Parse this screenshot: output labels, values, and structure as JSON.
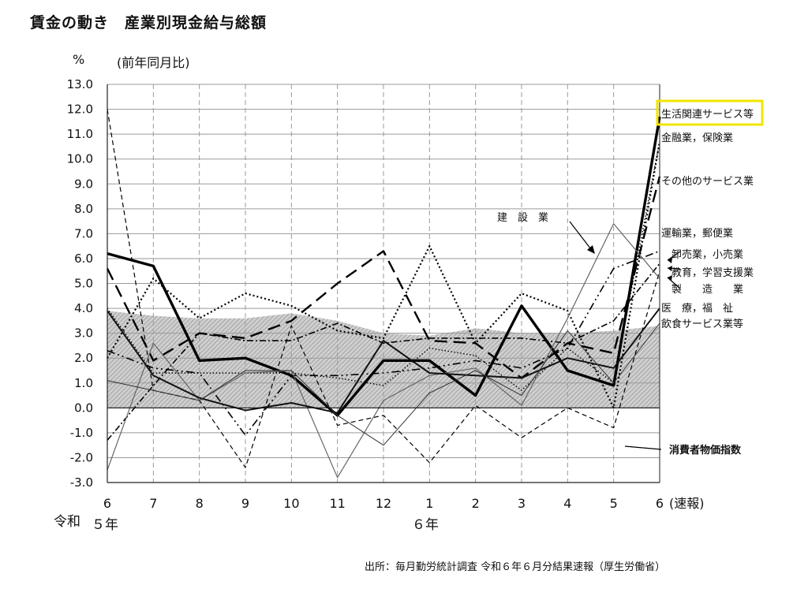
{
  "page": {
    "title": "賃金の動き　産業別現金給与総額",
    "unit": "%",
    "unit_note": "(前年同月比)",
    "source": "出所：毎月勤労統計調査 令和６年６月分結果速報（厚生労働省）"
  },
  "chart_data": {
    "type": "line",
    "title": "賃金の動き　産業別現金給与総額",
    "ylabel": "%",
    "ylim": [
      -3.0,
      13.0
    ],
    "y_ticks": [
      "13.0",
      "12.0",
      "11.0",
      "10.0",
      "9.0",
      "8.0",
      "7.0",
      "6.0",
      "5.0",
      "4.0",
      "3.0",
      "2.0",
      "1.0",
      "0.0",
      "-1.0",
      "-2.0",
      "-3.0"
    ],
    "grid": true,
    "categories": [
      "6",
      "7",
      "8",
      "9",
      "10",
      "11",
      "12",
      "1",
      "2",
      "3",
      "4",
      "5",
      "6"
    ],
    "x_suffix_last": "(速報)",
    "era_labels": [
      "令和",
      "５年",
      "６年"
    ],
    "series": [
      {
        "name": "生活関連サービス等",
        "values": [
          6.2,
          5.7,
          1.9,
          2.0,
          1.3,
          -0.3,
          1.9,
          1.9,
          0.5,
          4.1,
          1.5,
          0.9,
          11.7
        ]
      },
      {
        "name": "金融業，保険業",
        "values": [
          4.0,
          1.4,
          1.4,
          1.4,
          1.4,
          1.2,
          0.9,
          2.4,
          2.1,
          0.7,
          2.4,
          1.0,
          10.7
        ]
      },
      {
        "name": "その他のサービス業",
        "values": [
          5.6,
          1.9,
          3.0,
          2.8,
          3.5,
          5.0,
          6.3,
          2.7,
          2.6,
          1.2,
          2.6,
          2.2,
          9.3
        ]
      },
      {
        "name": "運輸業，郵便業",
        "values": [
          2.0,
          5.2,
          3.6,
          4.6,
          4.1,
          3.1,
          2.8,
          6.5,
          2.6,
          4.6,
          3.9,
          0.0,
          10.7
        ]
      },
      {
        "name": "卸売業，小売業",
        "values": [
          -1.3,
          0.9,
          3.0,
          2.7,
          2.7,
          3.4,
          2.6,
          2.8,
          2.8,
          2.8,
          2.6,
          3.5,
          5.8
        ]
      },
      {
        "name": "教育，学習支援業",
        "values": [
          12.0,
          0.7,
          0.3,
          -2.4,
          3.3,
          -0.7,
          -0.3,
          -2.2,
          0.1,
          -1.2,
          0.0,
          -0.8,
          5.5
        ]
      },
      {
        "name": "製　　造　　業",
        "values": [
          2.3,
          1.6,
          1.4,
          -1.1,
          1.3,
          1.3,
          1.4,
          1.6,
          1.9,
          1.6,
          2.4,
          5.6,
          6.3
        ]
      },
      {
        "name": "建　　設　　業",
        "values": [
          -2.5,
          2.6,
          0.3,
          1.4,
          1.5,
          -2.8,
          0.3,
          1.3,
          1.6,
          0.1,
          3.6,
          7.4,
          5.2
        ]
      },
      {
        "name": "医　療，福　祉",
        "values": [
          3.9,
          1.3,
          0.4,
          -0.1,
          0.2,
          -0.2,
          2.7,
          1.4,
          1.3,
          1.2,
          2.0,
          1.6,
          4.0
        ]
      },
      {
        "name": "飲食サービス業等",
        "values": [
          1.1,
          0.7,
          0.3,
          1.5,
          1.5,
          -0.3,
          -1.5,
          0.6,
          1.5,
          0.5,
          3.1,
          1.0,
          3.4
        ]
      }
    ],
    "area_series": {
      "name": "消費者物価指数",
      "values": [
        3.9,
        3.7,
        3.6,
        3.6,
        3.8,
        3.5,
        3.0,
        2.9,
        3.2,
        3.0,
        3.0,
        3.1,
        3.3
      ]
    },
    "annotations": {
      "construction": "建　設　業",
      "cpi": "消費者物価指数"
    },
    "highlight_color": "#f2e600"
  }
}
